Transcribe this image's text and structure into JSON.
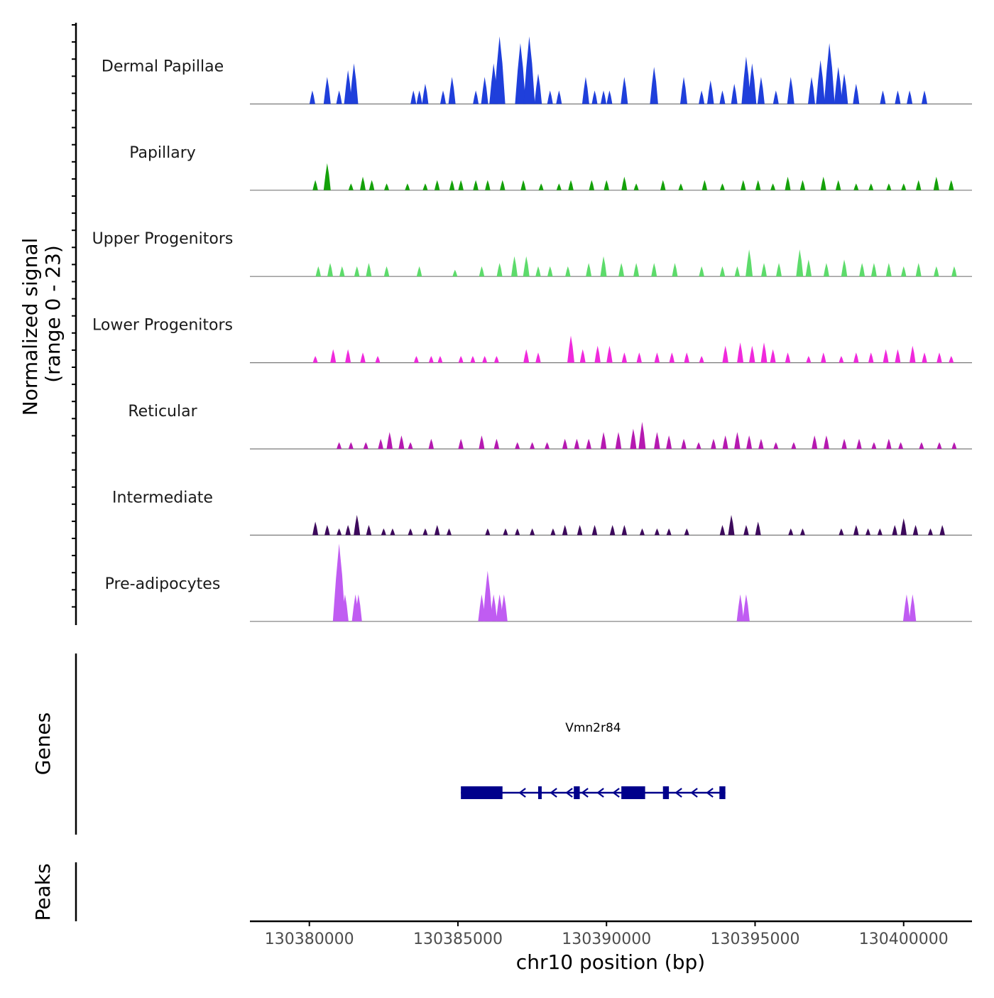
{
  "chart_data": {
    "type": "area",
    "title": "",
    "ylabel_line1": "Normalized signal",
    "ylabel_line2": "(range 0 - 23)",
    "xlabel": "chr10 position (bp)",
    "xlim": [
      130378000,
      130402300
    ],
    "ylim": [
      0,
      23
    ],
    "x_ticks": [
      130380000,
      130385000,
      130390000,
      130395000,
      130400000
    ],
    "x_tick_labels": [
      "130380000",
      "130385000",
      "130390000",
      "130395000",
      "130400000"
    ],
    "tracks": [
      {
        "name": "Dermal Papillae",
        "color": "#1f3fdb",
        "peaks": [
          [
            130380100,
            4
          ],
          [
            130380600,
            8
          ],
          [
            130381000,
            4
          ],
          [
            130381300,
            10
          ],
          [
            130381500,
            12
          ],
          [
            130383500,
            4
          ],
          [
            130383700,
            4
          ],
          [
            130383900,
            6
          ],
          [
            130384500,
            4
          ],
          [
            130384800,
            8
          ],
          [
            130385600,
            4
          ],
          [
            130385900,
            8
          ],
          [
            130386200,
            12
          ],
          [
            130386400,
            20
          ],
          [
            130387100,
            18
          ],
          [
            130387400,
            20
          ],
          [
            130387700,
            9
          ],
          [
            130388100,
            4
          ],
          [
            130388400,
            4
          ],
          [
            130389300,
            8
          ],
          [
            130389600,
            4
          ],
          [
            130389900,
            4
          ],
          [
            130390100,
            4
          ],
          [
            130390600,
            8
          ],
          [
            130391600,
            11
          ],
          [
            130392600,
            8
          ],
          [
            130393200,
            4
          ],
          [
            130393500,
            7
          ],
          [
            130393900,
            4
          ],
          [
            130394300,
            6
          ],
          [
            130394700,
            14
          ],
          [
            130394900,
            12
          ],
          [
            130395200,
            8
          ],
          [
            130395700,
            4
          ],
          [
            130396200,
            8
          ],
          [
            130396900,
            8
          ],
          [
            130397200,
            13
          ],
          [
            130397500,
            18
          ],
          [
            130397800,
            11
          ],
          [
            130398000,
            9
          ],
          [
            130398400,
            6
          ],
          [
            130399300,
            4
          ],
          [
            130399800,
            4
          ],
          [
            130400200,
            4
          ],
          [
            130400700,
            4
          ]
        ]
      },
      {
        "name": "Papillary",
        "color": "#14a10a",
        "peaks": [
          [
            130380200,
            3
          ],
          [
            130380600,
            8
          ],
          [
            130381400,
            2
          ],
          [
            130381800,
            4
          ],
          [
            130382100,
            3
          ],
          [
            130382600,
            2
          ],
          [
            130383300,
            2
          ],
          [
            130383900,
            2
          ],
          [
            130384300,
            3
          ],
          [
            130384800,
            3
          ],
          [
            130385100,
            3
          ],
          [
            130385600,
            3
          ],
          [
            130386000,
            3
          ],
          [
            130386500,
            3
          ],
          [
            130387200,
            3
          ],
          [
            130387800,
            2
          ],
          [
            130388400,
            2
          ],
          [
            130388800,
            3
          ],
          [
            130389500,
            3
          ],
          [
            130390000,
            3
          ],
          [
            130390600,
            4
          ],
          [
            130391000,
            2
          ],
          [
            130391900,
            3
          ],
          [
            130392500,
            2
          ],
          [
            130393300,
            3
          ],
          [
            130393900,
            2
          ],
          [
            130394600,
            3
          ],
          [
            130395100,
            3
          ],
          [
            130395600,
            2
          ],
          [
            130396100,
            4
          ],
          [
            130396600,
            3
          ],
          [
            130397300,
            4
          ],
          [
            130397800,
            3
          ],
          [
            130398400,
            2
          ],
          [
            130398900,
            2
          ],
          [
            130399500,
            2
          ],
          [
            130400000,
            2
          ],
          [
            130400500,
            3
          ],
          [
            130401100,
            4
          ],
          [
            130401600,
            3
          ]
        ]
      },
      {
        "name": "Upper Progenitors",
        "color": "#5ddb6b",
        "peaks": [
          [
            130380300,
            3
          ],
          [
            130380700,
            4
          ],
          [
            130381100,
            3
          ],
          [
            130381600,
            3
          ],
          [
            130382000,
            4
          ],
          [
            130382600,
            3
          ],
          [
            130383700,
            3
          ],
          [
            130384900,
            2
          ],
          [
            130385800,
            3
          ],
          [
            130386400,
            4
          ],
          [
            130386900,
            6
          ],
          [
            130387300,
            6
          ],
          [
            130387700,
            3
          ],
          [
            130388100,
            3
          ],
          [
            130388700,
            3
          ],
          [
            130389400,
            4
          ],
          [
            130389900,
            6
          ],
          [
            130390500,
            4
          ],
          [
            130391000,
            4
          ],
          [
            130391600,
            4
          ],
          [
            130392300,
            4
          ],
          [
            130393200,
            3
          ],
          [
            130393900,
            3
          ],
          [
            130394400,
            3
          ],
          [
            130394800,
            8
          ],
          [
            130395300,
            4
          ],
          [
            130395800,
            4
          ],
          [
            130396500,
            8
          ],
          [
            130396800,
            5
          ],
          [
            130397400,
            4
          ],
          [
            130398000,
            5
          ],
          [
            130398600,
            4
          ],
          [
            130399000,
            4
          ],
          [
            130399500,
            4
          ],
          [
            130400000,
            3
          ],
          [
            130400500,
            4
          ],
          [
            130401100,
            3
          ],
          [
            130401700,
            3
          ]
        ]
      },
      {
        "name": "Lower Progenitors",
        "color": "#f029dc",
        "peaks": [
          [
            130380200,
            2
          ],
          [
            130380800,
            4
          ],
          [
            130381300,
            4
          ],
          [
            130381800,
            3
          ],
          [
            130382300,
            2
          ],
          [
            130383600,
            2
          ],
          [
            130384100,
            2
          ],
          [
            130384400,
            2
          ],
          [
            130385100,
            2
          ],
          [
            130385500,
            2
          ],
          [
            130385900,
            2
          ],
          [
            130386300,
            2
          ],
          [
            130387300,
            4
          ],
          [
            130387700,
            3
          ],
          [
            130388800,
            8
          ],
          [
            130389200,
            4
          ],
          [
            130389700,
            5
          ],
          [
            130390100,
            5
          ],
          [
            130390600,
            3
          ],
          [
            130391100,
            3
          ],
          [
            130391700,
            3
          ],
          [
            130392200,
            3
          ],
          [
            130392700,
            3
          ],
          [
            130393200,
            2
          ],
          [
            130394000,
            5
          ],
          [
            130394500,
            6
          ],
          [
            130394900,
            5
          ],
          [
            130395300,
            6
          ],
          [
            130395600,
            4
          ],
          [
            130396100,
            3
          ],
          [
            130396800,
            2
          ],
          [
            130397300,
            3
          ],
          [
            130397900,
            2
          ],
          [
            130398400,
            3
          ],
          [
            130398900,
            3
          ],
          [
            130399400,
            4
          ],
          [
            130399800,
            4
          ],
          [
            130400300,
            5
          ],
          [
            130400700,
            3
          ],
          [
            130401200,
            3
          ],
          [
            130401600,
            2
          ]
        ]
      },
      {
        "name": "Reticular",
        "color": "#b51ab0",
        "peaks": [
          [
            130381000,
            2
          ],
          [
            130381400,
            2
          ],
          [
            130381900,
            2
          ],
          [
            130382400,
            3
          ],
          [
            130382700,
            5
          ],
          [
            130383100,
            4
          ],
          [
            130383400,
            2
          ],
          [
            130384100,
            3
          ],
          [
            130385100,
            3
          ],
          [
            130385800,
            4
          ],
          [
            130386300,
            3
          ],
          [
            130387000,
            2
          ],
          [
            130387500,
            2
          ],
          [
            130388000,
            2
          ],
          [
            130388600,
            3
          ],
          [
            130389000,
            3
          ],
          [
            130389400,
            3
          ],
          [
            130389900,
            5
          ],
          [
            130390400,
            5
          ],
          [
            130390900,
            6
          ],
          [
            130391200,
            8
          ],
          [
            130391700,
            5
          ],
          [
            130392100,
            4
          ],
          [
            130392600,
            3
          ],
          [
            130393100,
            2
          ],
          [
            130393600,
            3
          ],
          [
            130394000,
            4
          ],
          [
            130394400,
            5
          ],
          [
            130394800,
            4
          ],
          [
            130395200,
            3
          ],
          [
            130395700,
            2
          ],
          [
            130396300,
            2
          ],
          [
            130397000,
            4
          ],
          [
            130397400,
            4
          ],
          [
            130398000,
            3
          ],
          [
            130398500,
            3
          ],
          [
            130399000,
            2
          ],
          [
            130399500,
            3
          ],
          [
            130399900,
            2
          ],
          [
            130400600,
            2
          ],
          [
            130401200,
            2
          ],
          [
            130401700,
            2
          ]
        ]
      },
      {
        "name": "Intermediate",
        "color": "#3d0a5c",
        "peaks": [
          [
            130380200,
            4
          ],
          [
            130380600,
            3
          ],
          [
            130381000,
            2
          ],
          [
            130381300,
            3
          ],
          [
            130381600,
            6
          ],
          [
            130382000,
            3
          ],
          [
            130382500,
            2
          ],
          [
            130382800,
            2
          ],
          [
            130383400,
            2
          ],
          [
            130383900,
            2
          ],
          [
            130384300,
            3
          ],
          [
            130384700,
            2
          ],
          [
            130386000,
            2
          ],
          [
            130386600,
            2
          ],
          [
            130387000,
            2
          ],
          [
            130387500,
            2
          ],
          [
            130388200,
            2
          ],
          [
            130388600,
            3
          ],
          [
            130389100,
            3
          ],
          [
            130389600,
            3
          ],
          [
            130390200,
            3
          ],
          [
            130390600,
            3
          ],
          [
            130391200,
            2
          ],
          [
            130391700,
            2
          ],
          [
            130392100,
            2
          ],
          [
            130392700,
            2
          ],
          [
            130393900,
            3
          ],
          [
            130394200,
            6
          ],
          [
            130394700,
            3
          ],
          [
            130395100,
            4
          ],
          [
            130396200,
            2
          ],
          [
            130396600,
            2
          ],
          [
            130397900,
            2
          ],
          [
            130398400,
            3
          ],
          [
            130398800,
            2
          ],
          [
            130399200,
            2
          ],
          [
            130399700,
            3
          ],
          [
            130400000,
            5
          ],
          [
            130400400,
            3
          ],
          [
            130400900,
            2
          ],
          [
            130401300,
            3
          ]
        ]
      },
      {
        "name": "Pre-adipocytes",
        "color": "#c05cf2",
        "peaks": [
          [
            130381000,
            23
          ],
          [
            130381200,
            8
          ],
          [
            130381550,
            8
          ],
          [
            130381650,
            8
          ],
          [
            130385800,
            8
          ],
          [
            130386000,
            15
          ],
          [
            130386200,
            8
          ],
          [
            130386400,
            8
          ],
          [
            130386550,
            8
          ],
          [
            130394500,
            8
          ],
          [
            130394700,
            8
          ],
          [
            130400100,
            8
          ],
          [
            130400300,
            8
          ]
        ]
      }
    ],
    "genes": [
      {
        "name": "Vmn2r84",
        "start": 130385100,
        "end": 130394000,
        "strand": "-",
        "exons": [
          [
            130385100,
            130386500
          ],
          [
            130387700,
            130387800
          ],
          [
            130388900,
            130389100
          ],
          [
            130390500,
            130391300
          ],
          [
            130391900,
            130392100
          ],
          [
            130393800,
            130394000
          ]
        ]
      }
    ],
    "gene_panel_label": "Genes",
    "peak_panel_label": "Peaks"
  }
}
